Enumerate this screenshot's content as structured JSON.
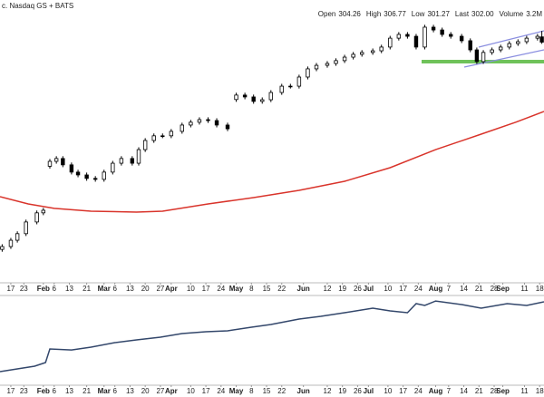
{
  "header": {
    "exchange": "c. Nasdaq GS + BATS",
    "fields": [
      {
        "label": "Open",
        "value": "304.26"
      },
      {
        "label": "High",
        "value": "306.77"
      },
      {
        "label": "Low",
        "value": "301.27"
      },
      {
        "label": "Last",
        "value": "302.00"
      },
      {
        "label": "Volume",
        "value": "3.2M"
      }
    ]
  },
  "chart_data": [
    {
      "type": "candlestick",
      "color": "#000000",
      "x": [
        13,
        17,
        20,
        24,
        29,
        32,
        35,
        38,
        41,
        45,
        48,
        52,
        56,
        60,
        64,
        68,
        73,
        76,
        79,
        83,
        87,
        91,
        96,
        100,
        104,
        108,
        112,
        117,
        121,
        125,
        129,
        133,
        137,
        142,
        146,
        150,
        154,
        158,
        163,
        167,
        171,
        175,
        179,
        184,
        188,
        192,
        196,
        200,
        204,
        208,
        212,
        216,
        220,
        225,
        229,
        232,
        235,
        239,
        243,
        247,
        251,
        255,
        260,
        262
      ],
      "open": [
        213.5,
        214.7,
        217.4,
        220.2,
        225.2,
        229.1,
        249.0,
        251.1,
        252.3,
        249.6,
        246.5,
        245.3,
        243.8,
        243.4,
        246.5,
        250.3,
        252.3,
        250.3,
        256.1,
        260.0,
        262.0,
        262.0,
        263.9,
        266.6,
        267.8,
        268.9,
        268.5,
        266.6,
        277.5,
        279.4,
        278.6,
        276.7,
        277.4,
        280.5,
        283.2,
        283.2,
        287.1,
        290.6,
        292.1,
        292.9,
        294.1,
        295.6,
        296.8,
        297.6,
        298.3,
        299.9,
        303.7,
        305.3,
        304.5,
        299.9,
        308.4,
        307.2,
        305.3,
        304.5,
        302.6,
        298.7,
        293.7,
        297.6,
        298.7,
        299.9,
        301.4,
        302.2,
        303.7,
        304.26
      ],
      "high": [
        215.7,
        218.4,
        221.2,
        226.2,
        230.1,
        231.2,
        252.1,
        253.3,
        253.3,
        250.6,
        247.5,
        246.3,
        244.8,
        247.5,
        251.3,
        253.3,
        253.3,
        257.1,
        261.0,
        263.0,
        263.0,
        264.9,
        267.6,
        268.8,
        269.9,
        269.9,
        269.5,
        267.6,
        280.4,
        280.4,
        279.6,
        278.4,
        281.5,
        284.2,
        284.2,
        288.1,
        291.6,
        293.1,
        293.9,
        295.1,
        296.6,
        297.8,
        298.6,
        299.3,
        300.9,
        304.7,
        306.3,
        306.3,
        305.5,
        309.4,
        309.4,
        308.2,
        306.3,
        305.5,
        303.6,
        299.7,
        298.6,
        299.7,
        300.9,
        302.4,
        303.2,
        304.7,
        305.5,
        306.77
      ],
      "low": [
        212.5,
        213.7,
        216.4,
        219.2,
        224.2,
        228.1,
        248.0,
        250.1,
        248.6,
        245.5,
        244.3,
        242.8,
        242.4,
        242.4,
        245.5,
        249.3,
        249.3,
        249.3,
        255.1,
        259.0,
        261.0,
        261.0,
        262.9,
        265.6,
        266.8,
        267.5,
        265.6,
        264.0,
        276.5,
        277.6,
        275.7,
        275.7,
        276.4,
        279.5,
        282.2,
        282.2,
        286.1,
        289.6,
        291.1,
        291.9,
        293.1,
        294.6,
        295.8,
        296.6,
        297.3,
        298.9,
        302.7,
        303.5,
        298.9,
        298.9,
        306.2,
        304.3,
        303.5,
        301.6,
        297.7,
        292.7,
        292.7,
        296.6,
        297.7,
        298.9,
        300.4,
        301.2,
        302.7,
        301.27
      ],
      "close": [
        214.7,
        217.4,
        220.2,
        225.2,
        229.1,
        230.2,
        251.1,
        252.3,
        249.6,
        246.5,
        245.3,
        243.8,
        243.4,
        246.5,
        250.3,
        252.3,
        250.3,
        256.1,
        260.0,
        262.0,
        262.0,
        263.9,
        266.6,
        267.8,
        268.9,
        268.5,
        266.6,
        265.0,
        279.4,
        278.6,
        276.7,
        277.4,
        280.5,
        283.2,
        283.2,
        287.1,
        290.6,
        292.1,
        292.9,
        294.1,
        295.6,
        296.8,
        297.6,
        298.3,
        299.9,
        303.7,
        305.3,
        304.5,
        299.9,
        308.4,
        307.2,
        305.3,
        304.5,
        302.6,
        298.7,
        293.7,
        297.6,
        298.7,
        299.9,
        301.4,
        302.2,
        303.7,
        304.5,
        302.0
      ],
      "overlays": [
        {
          "type": "line",
          "color": "#d9342b",
          "x": [
            12,
            25,
            37,
            54,
            75,
            87,
            108,
            129,
            150,
            171,
            192,
            213,
            234,
            250,
            263
          ],
          "values": [
            236.0,
            232.9,
            231.0,
            229.8,
            229.4,
            229.8,
            232.9,
            235.6,
            238.7,
            242.6,
            248.4,
            256.1,
            262.7,
            267.8,
            272.4
          ]
        }
      ],
      "ylim": [
        200,
        320
      ],
      "xlim": [
        12,
        263
      ],
      "xticks": [
        17,
        23,
        {
          "value": 32,
          "label": "Feb"
        },
        {
          "value": 37,
          "label": "6"
        },
        {
          "value": 44,
          "label": "13"
        },
        {
          "value": 52,
          "label": "21"
        },
        {
          "value": 60,
          "label": "Mar"
        },
        {
          "value": 65,
          "label": "6"
        },
        {
          "value": 72,
          "label": "13"
        },
        {
          "value": 79,
          "label": "20"
        },
        {
          "value": 86,
          "label": "27"
        },
        {
          "value": 91,
          "label": "Apr"
        },
        {
          "value": 100,
          "label": "10"
        },
        {
          "value": 107,
          "label": "17"
        },
        {
          "value": 114,
          "label": "24"
        },
        {
          "value": 121,
          "label": "May"
        },
        {
          "value": 128,
          "label": "8"
        },
        {
          "value": 135,
          "label": "15"
        },
        {
          "value": 142,
          "label": "22"
        },
        {
          "value": 152,
          "label": "Jun"
        },
        {
          "value": 163,
          "label": "12"
        },
        {
          "value": 170,
          "label": "19"
        },
        {
          "value": 177,
          "label": "26"
        },
        {
          "value": 182,
          "label": "Jul"
        },
        {
          "value": 191,
          "label": "10"
        },
        {
          "value": 198,
          "label": "17"
        },
        {
          "value": 205,
          "label": "24"
        },
        {
          "value": 213,
          "label": "Aug"
        },
        {
          "value": 219,
          "label": "7"
        },
        {
          "value": 226,
          "label": "14"
        },
        {
          "value": 233,
          "label": "21"
        },
        {
          "value": 240,
          "label": "28"
        },
        {
          "value": 244,
          "label": "Sep"
        },
        {
          "value": 254,
          "label": "11"
        },
        {
          "value": 261,
          "label": "18"
        }
      ]
    },
    {
      "type": "line",
      "color": "#33476b",
      "x": [
        12,
        20,
        28,
        33,
        35,
        45,
        54,
        65,
        75,
        86,
        96,
        107,
        117,
        128,
        137,
        150,
        160,
        171,
        184,
        192,
        200,
        204,
        208,
        213,
        225,
        234,
        246,
        255,
        263
      ],
      "values": [
        25.9,
        28.7,
        31.5,
        35.2,
        49.1,
        48.1,
        50.9,
        55.6,
        58.3,
        61.1,
        64.8,
        66.7,
        67.6,
        71.3,
        74.1,
        79.6,
        82.4,
        86.1,
        90.7,
        88.0,
        86.1,
        95.4,
        93.5,
        98.1,
        94.4,
        90.7,
        95.4,
        93.5,
        97.2
      ],
      "ylim": [
        0,
        100
      ],
      "xlim": [
        12,
        263
      ],
      "xticks": [
        17,
        23,
        {
          "value": 32,
          "label": "Feb"
        },
        {
          "value": 37,
          "label": "6"
        },
        {
          "value": 44,
          "label": "13"
        },
        {
          "value": 52,
          "label": "21"
        },
        {
          "value": 60,
          "label": "Mar"
        },
        {
          "value": 65,
          "label": "6"
        },
        {
          "value": 72,
          "label": "13"
        },
        {
          "value": 79,
          "label": "20"
        },
        {
          "value": 86,
          "label": "27"
        },
        {
          "value": 91,
          "label": "Apr"
        },
        {
          "value": 100,
          "label": "10"
        },
        {
          "value": 107,
          "label": "17"
        },
        {
          "value": 114,
          "label": "24"
        },
        {
          "value": 121,
          "label": "May"
        },
        {
          "value": 128,
          "label": "8"
        },
        {
          "value": 135,
          "label": "15"
        },
        {
          "value": 142,
          "label": "22"
        },
        {
          "value": 152,
          "label": "Jun"
        },
        {
          "value": 163,
          "label": "12"
        },
        {
          "value": 170,
          "label": "19"
        },
        {
          "value": 177,
          "label": "26"
        },
        {
          "value": 182,
          "label": "Jul"
        },
        {
          "value": 191,
          "label": "10"
        },
        {
          "value": 198,
          "label": "17"
        },
        {
          "value": 205,
          "label": "24"
        },
        {
          "value": 213,
          "label": "Aug"
        },
        {
          "value": 219,
          "label": "7"
        },
        {
          "value": 226,
          "label": "14"
        },
        {
          "value": 233,
          "label": "21"
        },
        {
          "value": 240,
          "label": "28"
        },
        {
          "value": 244,
          "label": "Sep"
        },
        {
          "value": 254,
          "label": "11"
        },
        {
          "value": 261,
          "label": "18"
        }
      ]
    }
  ]
}
